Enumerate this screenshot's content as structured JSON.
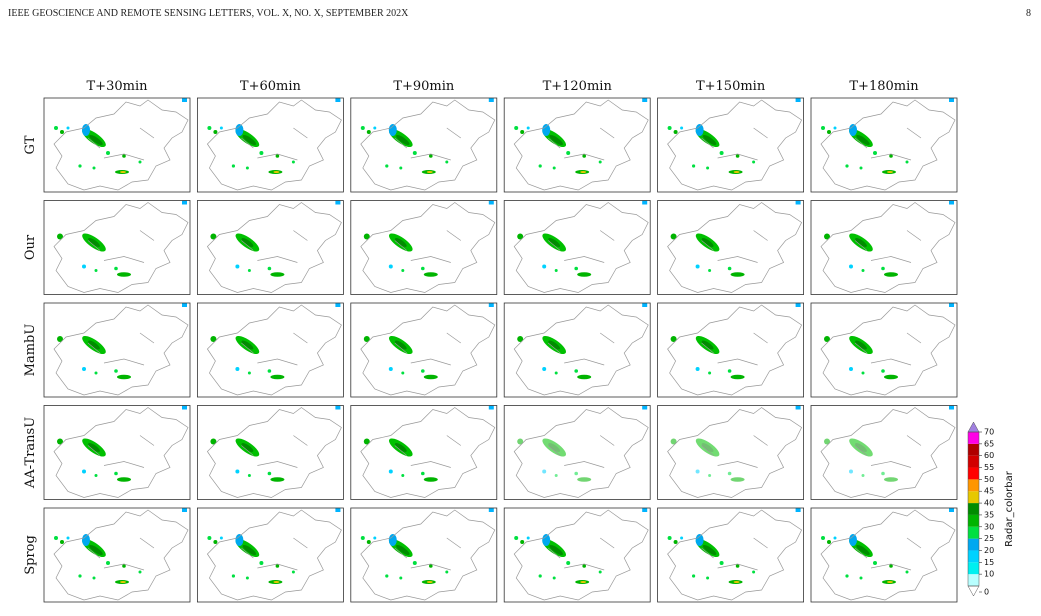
{
  "header": {
    "title": "IEEE GEOSCIENCE AND REMOTE SENSING LETTERS, VOL. X, NO. X, SEPTEMBER 202X",
    "page": "8"
  },
  "figure": {
    "columns": [
      "T+30min",
      "T+60min",
      "T+90min",
      "T+120min",
      "T+150min",
      "T+180min"
    ],
    "rows": [
      "GT",
      "Our",
      "MambU",
      "AA-TransU",
      "Sprog"
    ]
  },
  "colorbar": {
    "label": "Radar_colorbar",
    "ticks": [
      0,
      10,
      15,
      20,
      25,
      30,
      35,
      40,
      45,
      50,
      55,
      60,
      65,
      70
    ],
    "colors": [
      "#b8ffff",
      "#00f0f0",
      "#00d2ff",
      "#00a8f0",
      "#00e040",
      "#00b400",
      "#008c00",
      "#e6c800",
      "#ff9600",
      "#ff0000",
      "#d20000",
      "#b00000",
      "#ff00e6"
    ]
  }
}
